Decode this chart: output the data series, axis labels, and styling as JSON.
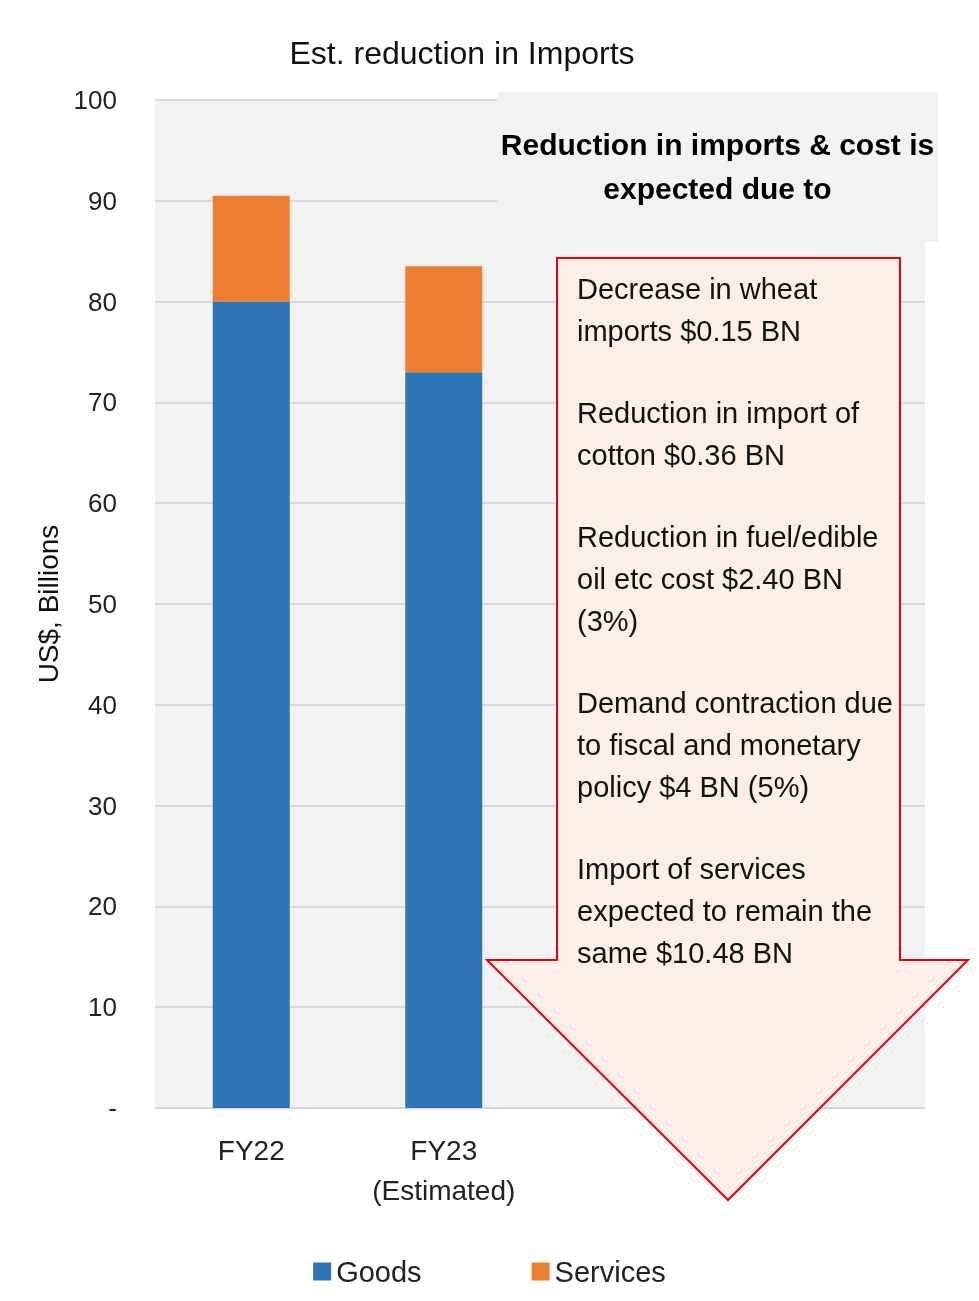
{
  "chart_data": {
    "type": "bar",
    "title": "Est. reduction in Imports",
    "ylabel": "US$, Billions",
    "categories": [
      "FY22",
      "FY23\n(Estimated)",
      null,
      null
    ],
    "stacked": true,
    "series": [
      {
        "name": "Goods",
        "color": "#2e75b6",
        "values": [
          80,
          73,
          null,
          null
        ]
      },
      {
        "name": "Services",
        "color": "#ed7d31",
        "values": [
          10.5,
          10.5,
          null,
          null
        ]
      }
    ],
    "ylim": [
      0,
      100
    ],
    "yticks": [
      {
        "value": 0,
        "label": "-"
      },
      10,
      20,
      30,
      40,
      50,
      60,
      70,
      80,
      90,
      100
    ],
    "grid": "y",
    "legend": "bottom",
    "annotations": [
      "Reduction in imports & cost is expected due to",
      "Decrease in wheat imports $0.15 BN",
      "Reduction in import of cotton $0.36 BN",
      "Reduction in fuel/edible oil etc cost $2.40 BN (3%)",
      "Demand contraction due to fiscal and monetary policy $4 BN (5%)",
      "Import of services expected to remain the same $10.48 BN"
    ]
  }
}
